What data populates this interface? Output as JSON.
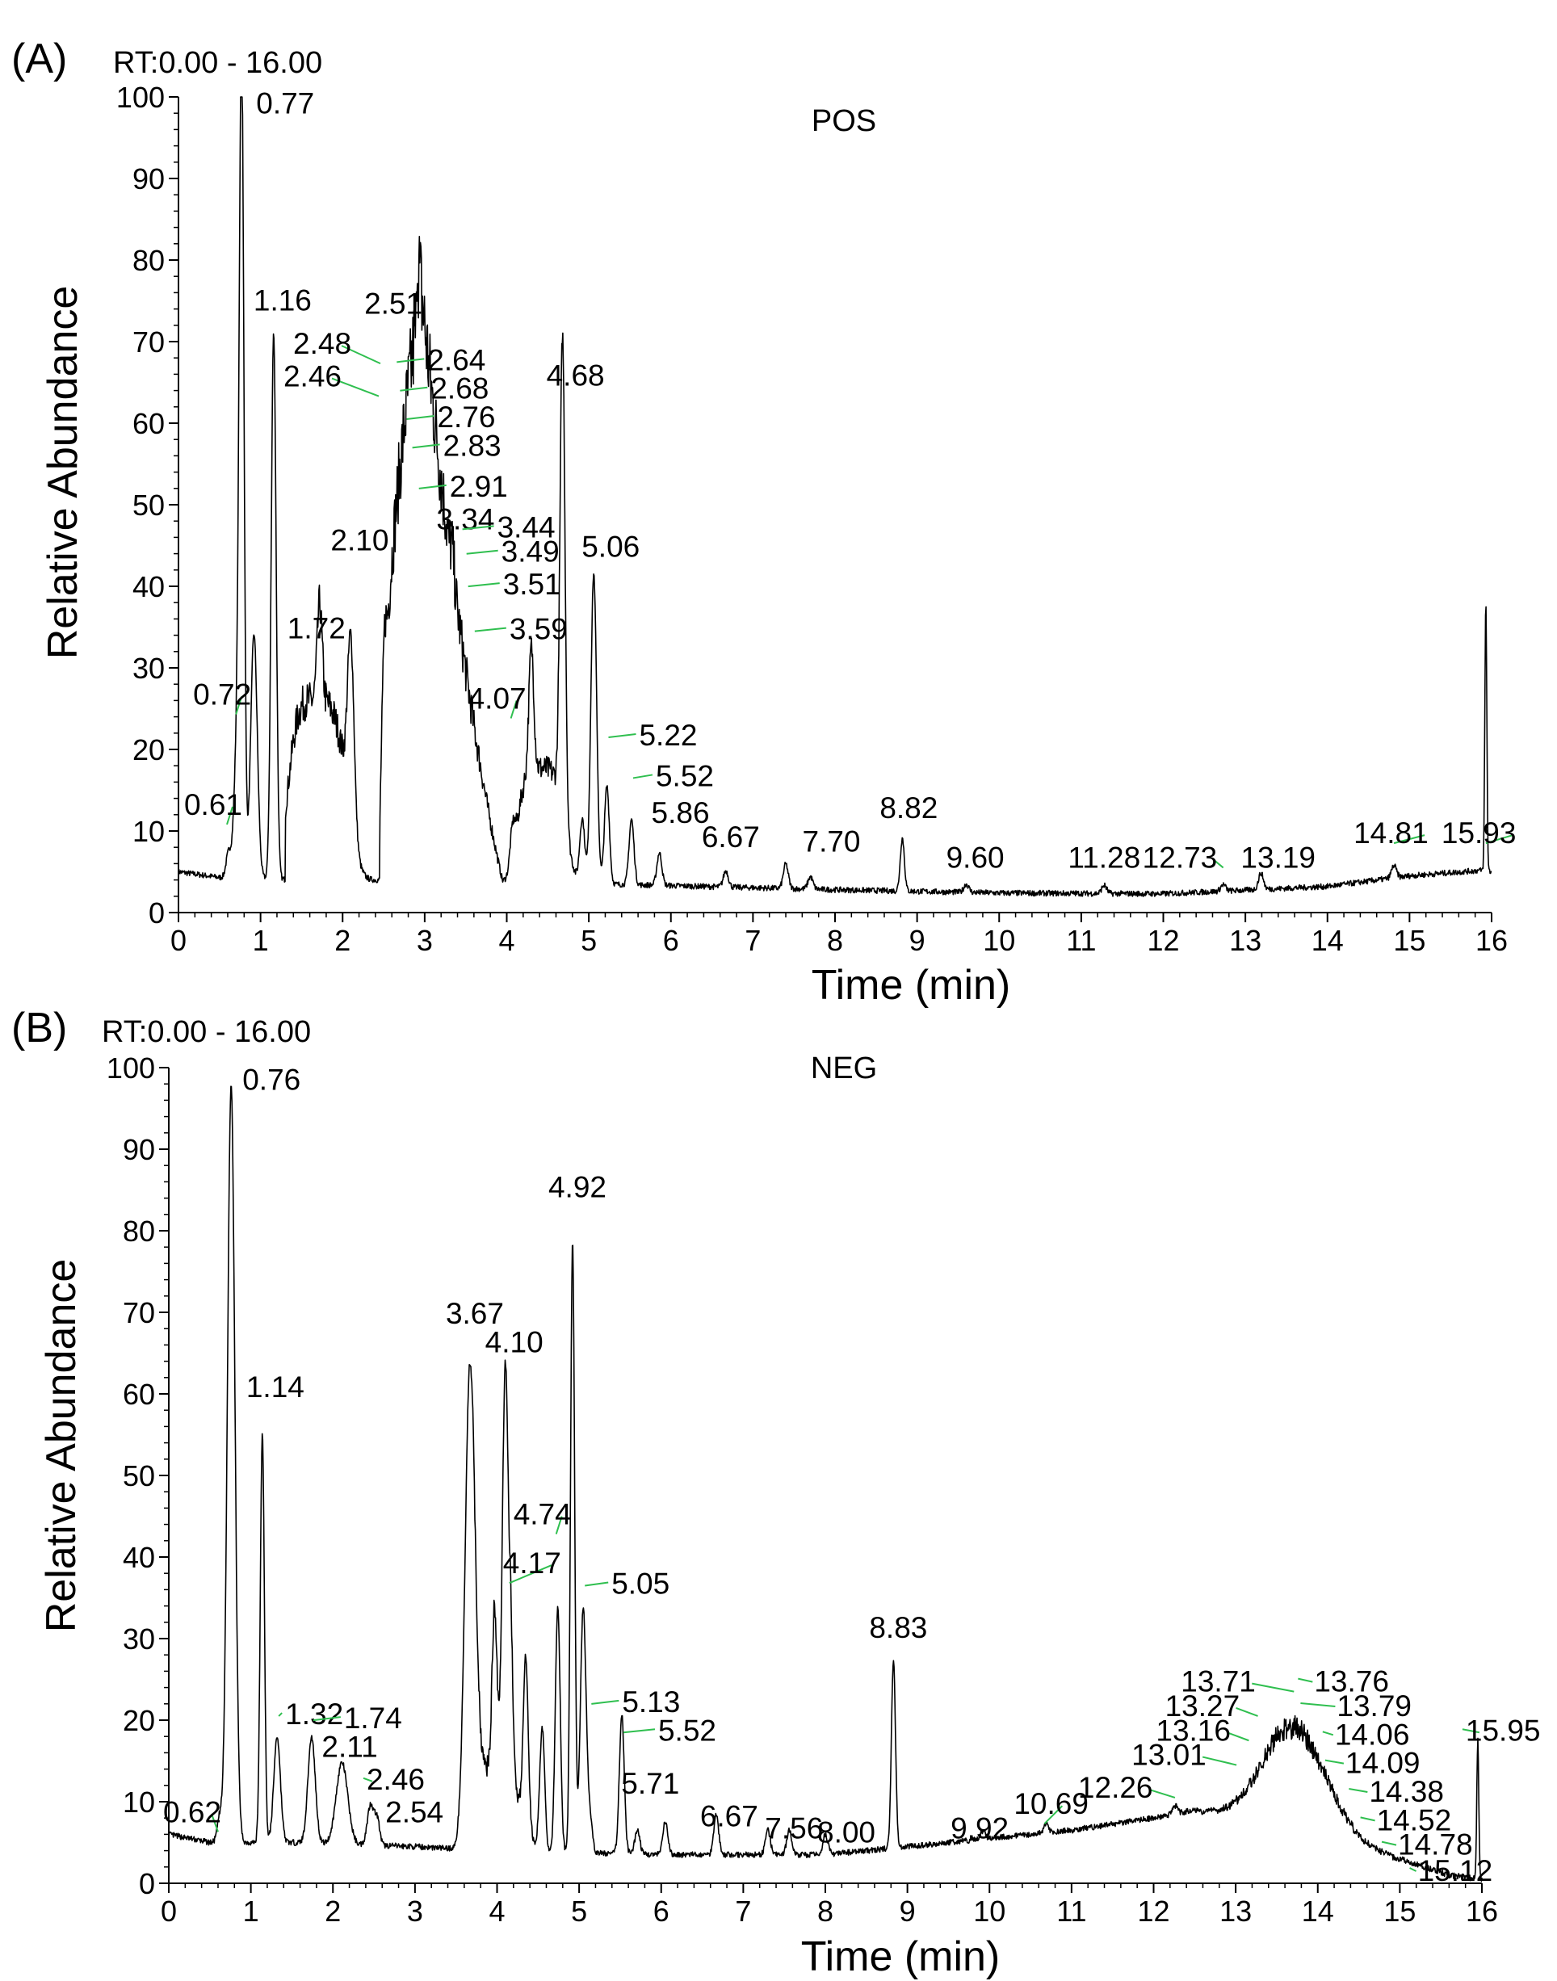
{
  "chart_data": [
    {
      "type": "line",
      "panel_label": "(A)",
      "rt_label": "RT:0.00 - 16.00",
      "mode": "POS",
      "xlabel": "Time (min)",
      "ylabel": "Relative Abundance",
      "xlim": [
        0,
        16
      ],
      "ylim": [
        0,
        100
      ],
      "xticks": [
        "0",
        "1",
        "2",
        "3",
        "4",
        "5",
        "6",
        "7",
        "8",
        "9",
        "10",
        "11",
        "12",
        "13",
        "14",
        "15",
        "16"
      ],
      "yticks": [
        "0",
        "10",
        "20",
        "30",
        "40",
        "50",
        "60",
        "70",
        "80",
        "90",
        "100"
      ],
      "baseline": [
        [
          0,
          5
        ],
        [
          0.5,
          4.3
        ],
        [
          1.5,
          4
        ],
        [
          2.5,
          4
        ],
        [
          4,
          3.8
        ],
        [
          6,
          3.3
        ],
        [
          8,
          2.8
        ],
        [
          10,
          2.4
        ],
        [
          12,
          2.3
        ],
        [
          14,
          3.2
        ],
        [
          15,
          4.5
        ],
        [
          15.9,
          5.2
        ],
        [
          16,
          5
        ]
      ],
      "humps": [
        {
          "center": 2.9,
          "height": 68,
          "left_width": 0.05,
          "right_width": 0.95,
          "start": 2.45,
          "end": 3.95,
          "shape": "skewed"
        },
        {
          "center": 1.65,
          "height": 22,
          "left_width": 0.35,
          "right_width": 0.45,
          "start": 1.3,
          "end": 2.4,
          "shape": "flat"
        },
        {
          "center": 4.4,
          "height": 14,
          "left_width": 0.3,
          "right_width": 0.35,
          "start": 3.9,
          "end": 4.9,
          "shape": "flat"
        }
      ],
      "peaks": [
        {
          "rt": 0.61,
          "height": 3.0,
          "width": 0.03
        },
        {
          "rt": 0.72,
          "height": 17,
          "width": 0.04
        },
        {
          "rt": 0.77,
          "height": 96,
          "width": 0.028
        },
        {
          "rt": 0.92,
          "height": 30,
          "width": 0.04
        },
        {
          "rt": 1.16,
          "height": 67,
          "width": 0.03
        },
        {
          "rt": 1.72,
          "height": 12,
          "width": 0.03
        },
        {
          "rt": 2.1,
          "height": 22,
          "width": 0.04
        },
        {
          "rt": 2.51,
          "height": 6,
          "width": 0.02
        },
        {
          "rt": 3.34,
          "height": 3,
          "width": 0.02
        },
        {
          "rt": 4.07,
          "height": 4,
          "width": 0.03
        },
        {
          "rt": 4.3,
          "height": 15,
          "width": 0.03
        },
        {
          "rt": 4.68,
          "height": 58,
          "width": 0.03
        },
        {
          "rt": 4.92,
          "height": 8,
          "width": 0.03
        },
        {
          "rt": 5.06,
          "height": 38,
          "width": 0.035
        },
        {
          "rt": 5.22,
          "height": 12,
          "width": 0.03
        },
        {
          "rt": 5.52,
          "height": 8,
          "width": 0.03
        },
        {
          "rt": 5.86,
          "height": 4,
          "width": 0.03
        },
        {
          "rt": 6.67,
          "height": 2,
          "width": 0.03
        },
        {
          "rt": 7.4,
          "height": 3,
          "width": 0.03
        },
        {
          "rt": 7.7,
          "height": 1.5,
          "width": 0.03
        },
        {
          "rt": 8.82,
          "height": 6.5,
          "width": 0.025
        },
        {
          "rt": 9.6,
          "height": 1.0,
          "width": 0.03
        },
        {
          "rt": 11.28,
          "height": 1.0,
          "width": 0.03
        },
        {
          "rt": 12.73,
          "height": 0.8,
          "width": 0.03
        },
        {
          "rt": 13.19,
          "height": 2.0,
          "width": 0.03
        },
        {
          "rt": 14.81,
          "height": 1.5,
          "width": 0.03
        },
        {
          "rt": 15.93,
          "height": 33,
          "width": 0.012
        }
      ],
      "labels": [
        {
          "text": "0.61",
          "rt": 0.61,
          "y": 10.5
        },
        {
          "text": "0.72",
          "rt": 0.72,
          "y": 24
        },
        {
          "text": "0.77",
          "rt": 0.77,
          "y": 97
        },
        {
          "text": "1.16",
          "rt": 1.16,
          "y": 73
        },
        {
          "text": "1.72",
          "rt": 1.72,
          "y": 33
        },
        {
          "text": "2.10",
          "rt": 2.1,
          "y": 44
        },
        {
          "text": "2.51",
          "rt": 2.51,
          "y": 73
        },
        {
          "text": "2.48",
          "rt": 2.48,
          "y": 68.5
        },
        {
          "text": "2.46",
          "rt": 2.46,
          "y": 64.5
        },
        {
          "text": "2.64",
          "rt": 2.64,
          "y": 66.5
        },
        {
          "text": "2.68",
          "rt": 2.68,
          "y": 63
        },
        {
          "text": "2.76",
          "rt": 2.76,
          "y": 59.5
        },
        {
          "text": "2.83",
          "rt": 2.83,
          "y": 56
        },
        {
          "text": "2.91",
          "rt": 2.91,
          "y": 51
        },
        {
          "text": "3.34",
          "rt": 3.34,
          "y": 47
        },
        {
          "text": "3.44",
          "rt": 3.44,
          "y": 46
        },
        {
          "text": "3.49",
          "rt": 3.49,
          "y": 43
        },
        {
          "text": "3.51",
          "rt": 3.51,
          "y": 39
        },
        {
          "text": "3.59",
          "rt": 3.59,
          "y": 33.5
        },
        {
          "text": "4.07",
          "rt": 4.07,
          "y": 25
        },
        {
          "text": "4.68",
          "rt": 4.68,
          "y": 64
        },
        {
          "text": "5.06",
          "rt": 5.06,
          "y": 43
        },
        {
          "text": "5.22",
          "rt": 5.22,
          "y": 20.5
        },
        {
          "text": "5.52",
          "rt": 5.52,
          "y": 15.5
        },
        {
          "text": "5.86",
          "rt": 5.86,
          "y": 11
        },
        {
          "text": "6.67",
          "rt": 6.67,
          "y": 8
        },
        {
          "text": "7.70",
          "rt": 7.7,
          "y": 7.5
        },
        {
          "text": "8.82",
          "rt": 8.82,
          "y": 11
        },
        {
          "text": "9.60",
          "rt": 9.6,
          "y": 5.5
        },
        {
          "text": "11.28",
          "rt": 11.28,
          "y": 5.5
        },
        {
          "text": "12.73",
          "rt": 12.73,
          "y": 5.5
        },
        {
          "text": "13.19",
          "rt": 13.19,
          "y": 5.5
        },
        {
          "text": "14.81",
          "rt": 14.81,
          "y": 8.5
        },
        {
          "text": "15.93",
          "rt": 15.93,
          "y": 8.5
        }
      ]
    },
    {
      "type": "line",
      "panel_label": "(B)",
      "rt_label": "RT:0.00 - 16.00",
      "mode": "NEG",
      "xlabel": "Time (min)",
      "ylabel": "Relative Abundance",
      "xlim": [
        0,
        16
      ],
      "ylim": [
        0,
        100
      ],
      "xticks": [
        "0",
        "1",
        "2",
        "3",
        "4",
        "5",
        "6",
        "7",
        "8",
        "9",
        "10",
        "11",
        "12",
        "13",
        "14",
        "15",
        "16"
      ],
      "yticks": [
        "0",
        "10",
        "20",
        "30",
        "40",
        "50",
        "60",
        "70",
        "80",
        "90",
        "100"
      ],
      "baseline": [
        [
          0,
          6
        ],
        [
          0.5,
          5
        ],
        [
          1.5,
          5
        ],
        [
          3,
          4.5
        ],
        [
          4,
          4
        ],
        [
          6,
          3.5
        ],
        [
          8,
          3.5
        ],
        [
          9,
          4.5
        ],
        [
          10,
          5.5
        ],
        [
          11,
          6.5
        ],
        [
          12,
          8
        ],
        [
          12.5,
          9
        ],
        [
          15,
          3
        ],
        [
          15.6,
          1
        ],
        [
          16,
          0.5
        ]
      ],
      "humps": [
        {
          "center": 13.7,
          "height": 13,
          "left_width": 0.75,
          "right_width": 0.8,
          "start": 12.6,
          "end": 14.9,
          "shape": "gauss"
        },
        {
          "center": 3.85,
          "height": 10,
          "left_width": 0.25,
          "right_width": 0.5,
          "start": 3.5,
          "end": 4.9,
          "shape": "flat"
        }
      ],
      "peaks": [
        {
          "rt": 0.62,
          "height": 3,
          "width": 0.03
        },
        {
          "rt": 0.76,
          "height": 93,
          "width": 0.045
        },
        {
          "rt": 1.14,
          "height": 50,
          "width": 0.025
        },
        {
          "rt": 1.32,
          "height": 13,
          "width": 0.04
        },
        {
          "rt": 1.74,
          "height": 13,
          "width": 0.045
        },
        {
          "rt": 2.11,
          "height": 10,
          "width": 0.07
        },
        {
          "rt": 2.46,
          "height": 5,
          "width": 0.04
        },
        {
          "rt": 2.54,
          "height": 3,
          "width": 0.03
        },
        {
          "rt": 3.67,
          "height": 52,
          "width": 0.06
        },
        {
          "rt": 3.97,
          "height": 20,
          "width": 0.03
        },
        {
          "rt": 4.1,
          "height": 50,
          "width": 0.035
        },
        {
          "rt": 4.17,
          "height": 16,
          "width": 0.025
        },
        {
          "rt": 4.35,
          "height": 20,
          "width": 0.03
        },
        {
          "rt": 4.55,
          "height": 15,
          "width": 0.03
        },
        {
          "rt": 4.74,
          "height": 30,
          "width": 0.03
        },
        {
          "rt": 4.92,
          "height": 75,
          "width": 0.025
        },
        {
          "rt": 5.05,
          "height": 30,
          "width": 0.035
        },
        {
          "rt": 5.13,
          "height": 4,
          "width": 0.03
        },
        {
          "rt": 5.52,
          "height": 17,
          "width": 0.03
        },
        {
          "rt": 5.71,
          "height": 3,
          "width": 0.03
        },
        {
          "rt": 6.05,
          "height": 4,
          "width": 0.03
        },
        {
          "rt": 6.67,
          "height": 5,
          "width": 0.03
        },
        {
          "rt": 7.3,
          "height": 3,
          "width": 0.03
        },
        {
          "rt": 7.56,
          "height": 3,
          "width": 0.03
        },
        {
          "rt": 8.0,
          "height": 2.5,
          "width": 0.03
        },
        {
          "rt": 8.83,
          "height": 23,
          "width": 0.025
        },
        {
          "rt": 9.92,
          "height": 1,
          "width": 0.03
        },
        {
          "rt": 10.69,
          "height": 1,
          "width": 0.03
        },
        {
          "rt": 12.26,
          "height": 1,
          "width": 0.03
        },
        {
          "rt": 15.95,
          "height": 17,
          "width": 0.012
        }
      ],
      "labels": [
        {
          "text": "0.62",
          "rt": 0.62,
          "y": 7.5
        },
        {
          "text": "0.76",
          "rt": 0.76,
          "y": 96.5
        },
        {
          "text": "1.14",
          "rt": 1.14,
          "y": 59
        },
        {
          "text": "1.32",
          "rt": 1.32,
          "y": 19.5
        },
        {
          "text": "1.74",
          "rt": 1.74,
          "y": 19
        },
        {
          "text": "2.11",
          "rt": 2.11,
          "y": 15.5
        },
        {
          "text": "2.46",
          "rt": 2.46,
          "y": 11.5
        },
        {
          "text": "2.54",
          "rt": 2.54,
          "y": 7.5
        },
        {
          "text": "3.67",
          "rt": 3.67,
          "y": 68
        },
        {
          "text": "4.10",
          "rt": 4.1,
          "y": 64.5
        },
        {
          "text": "4.17",
          "rt": 4.17,
          "y": 38
        },
        {
          "text": "4.74",
          "rt": 4.74,
          "y": 44
        },
        {
          "text": "4.92",
          "rt": 4.92,
          "y": 83.5
        },
        {
          "text": "5.05",
          "rt": 5.05,
          "y": 35.5
        },
        {
          "text": "5.13",
          "rt": 5.13,
          "y": 21
        },
        {
          "text": "5.52",
          "rt": 5.52,
          "y": 17.5
        },
        {
          "text": "5.71",
          "rt": 5.71,
          "y": 11
        },
        {
          "text": "6.67",
          "rt": 6.67,
          "y": 7
        },
        {
          "text": "7.56",
          "rt": 7.56,
          "y": 5.5
        },
        {
          "text": "8.00",
          "rt": 8.0,
          "y": 5
        },
        {
          "text": "8.83",
          "rt": 8.83,
          "y": 29.5
        },
        {
          "text": "9.92",
          "rt": 9.92,
          "y": 5.5
        },
        {
          "text": "10.69",
          "rt": 10.69,
          "y": 8.5
        },
        {
          "text": "12.26",
          "rt": 12.26,
          "y": 10.5
        },
        {
          "text": "13.01",
          "rt": 13.01,
          "y": 14.5
        },
        {
          "text": "13.16",
          "rt": 13.16,
          "y": 17.5
        },
        {
          "text": "13.27",
          "rt": 13.27,
          "y": 20.5
        },
        {
          "text": "13.71",
          "rt": 13.71,
          "y": 23.5
        },
        {
          "text": "13.76",
          "rt": 13.76,
          "y": 23.5
        },
        {
          "text": "13.79",
          "rt": 13.79,
          "y": 20.5
        },
        {
          "text": "14.06",
          "rt": 14.06,
          "y": 17
        },
        {
          "text": "14.09",
          "rt": 14.09,
          "y": 13.5
        },
        {
          "text": "14.38",
          "rt": 14.38,
          "y": 10
        },
        {
          "text": "14.52",
          "rt": 14.52,
          "y": 6.5
        },
        {
          "text": "14.78",
          "rt": 14.78,
          "y": 3.5
        },
        {
          "text": "15.12",
          "rt": 15.12,
          "y": 0.3
        },
        {
          "text": "15.95",
          "rt": 15.95,
          "y": 17.5
        }
      ]
    }
  ]
}
